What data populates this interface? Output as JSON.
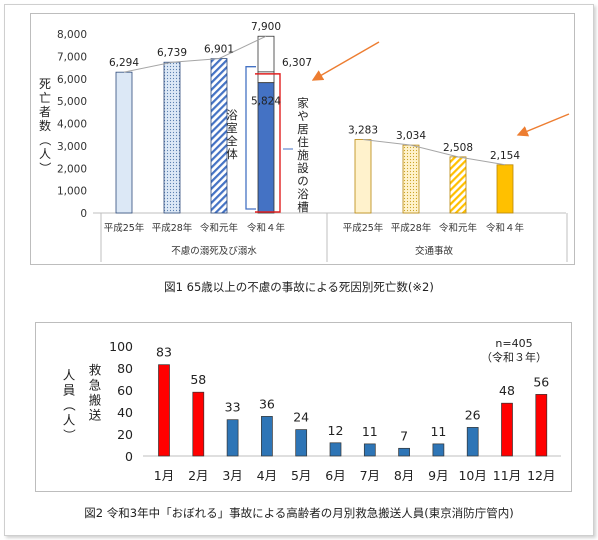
{
  "figure1_caption": "図1 65歳以上の不慮の事故による死因別死亡数(※2)",
  "figure2_caption": "図2 令和3年中「おぼれる」事故による高齢者の月別救急搬送人員(東京消防庁管内)",
  "chart_data": [
    {
      "type": "bar",
      "ylabel": "死亡者数（人）",
      "ylim": [
        0,
        8000
      ],
      "yticks": [
        "0",
        "1,000",
        "2,000",
        "3,000",
        "4,000",
        "5,000",
        "6,000",
        "7,000",
        "8,000"
      ],
      "grid": false,
      "groups": [
        {
          "name": "不慮の溺死及び溺水",
          "categories": [
            "平成25年",
            "平成28年",
            "令和元年",
            "令和４年"
          ],
          "values": [
            6294,
            6739,
            6901,
            7900
          ],
          "labels": [
            "6,294",
            "6,739",
            "6,901",
            "7,900"
          ]
        },
        {
          "name": "交通事故",
          "categories": [
            "平成25年",
            "平成28年",
            "令和元年",
            "令和４年"
          ],
          "values": [
            3283,
            3034,
            2508,
            2154
          ],
          "labels": [
            "3,283",
            "3,034",
            "2,508",
            "2,154"
          ]
        }
      ],
      "reiwa4_breakdown": {
        "home_bath": 6307,
        "home_bath_label": "6,307",
        "home_bath_note": "家や居住施設の浴槽",
        "bathroom_total": 5824,
        "bathroom_total_label": "5,824",
        "bathroom_note": "浴室全体"
      },
      "colors": {
        "group1_fill": "#dce8f6",
        "group1_stroke": "#2e4a7a",
        "group2_fill": "#fff2cc",
        "group2_stroke": "#b8860b",
        "latest_group1": "#4472c4",
        "latest_group2": "#ffc000",
        "bracket_red": "#e02020",
        "bracket_blue": "#4472c4",
        "arrow": "#ed7d31"
      }
    },
    {
      "type": "bar",
      "ylabel": "救急搬送人員（人）",
      "ylim": [
        0,
        100
      ],
      "yticks": [
        "0",
        "20",
        "40",
        "60",
        "80",
        "100"
      ],
      "annotation_n": "n=405",
      "annotation_year": "（令和３年）",
      "categories": [
        "1月",
        "2月",
        "3月",
        "4月",
        "5月",
        "6月",
        "7月",
        "8月",
        "9月",
        "10月",
        "11月",
        "12月"
      ],
      "values": [
        83,
        58,
        33,
        36,
        24,
        12,
        11,
        7,
        11,
        26,
        48,
        56
      ],
      "highlight": [
        true,
        true,
        false,
        false,
        false,
        false,
        false,
        false,
        false,
        false,
        true,
        true
      ],
      "colors": {
        "red": "#ff0000",
        "blue": "#2e75b6",
        "stroke": "#333333"
      }
    }
  ]
}
